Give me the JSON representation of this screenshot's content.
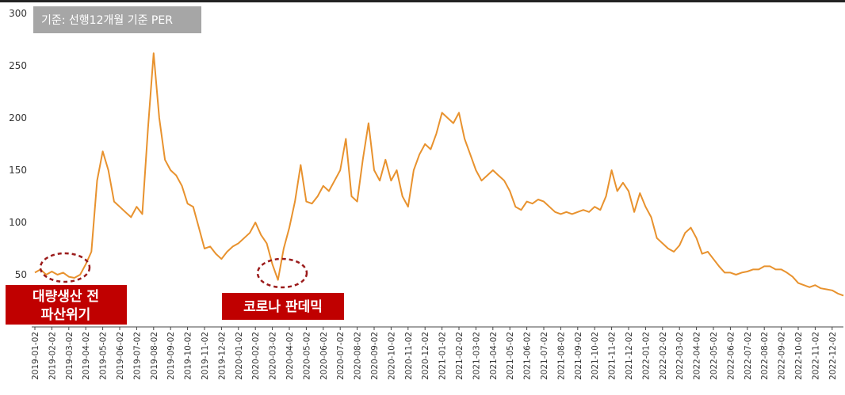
{
  "chart_data": {
    "type": "line",
    "note": "기준: 선행12개월 기준 PER",
    "annotations": [
      {
        "lines": [
          "대량생산 전",
          "파산위기"
        ]
      },
      {
        "lines": [
          "코로나 판데믹"
        ]
      }
    ],
    "categories": [
      "2019-01-02",
      null,
      null,
      "2019-02-02",
      null,
      null,
      "2019-03-02",
      null,
      null,
      "2019-04-02",
      null,
      null,
      "2019-05-02",
      null,
      null,
      "2019-06-02",
      null,
      null,
      "2019-07-02",
      null,
      null,
      "2019-08-02",
      null,
      null,
      "2019-09-02",
      null,
      null,
      "2019-10-02",
      null,
      null,
      "2019-11-02",
      null,
      null,
      "2019-12-02",
      null,
      null,
      "2020-01-02",
      null,
      null,
      "2020-02-02",
      null,
      null,
      "2020-03-02",
      null,
      null,
      "2020-04-02",
      null,
      null,
      "2020-05-02",
      null,
      null,
      "2020-06-02",
      null,
      null,
      "2020-07-02",
      null,
      null,
      "2020-08-02",
      null,
      null,
      "2020-09-02",
      null,
      null,
      "2020-10-02",
      null,
      null,
      "2020-11-02",
      null,
      null,
      "2020-12-02",
      null,
      null,
      "2021-01-02",
      null,
      null,
      "2021-02-02",
      null,
      null,
      "2021-03-02",
      null,
      null,
      "2021-04-02",
      null,
      null,
      "2021-05-02",
      null,
      null,
      "2021-06-02",
      null,
      null,
      "2021-07-02",
      null,
      null,
      "2021-08-02",
      null,
      null,
      "2021-09-02",
      null,
      null,
      "2021-10-02",
      null,
      null,
      "2021-11-02",
      null,
      null,
      "2021-12-02",
      null,
      null,
      "2022-01-02",
      null,
      null,
      "2022-02-02",
      null,
      null,
      "2022-03-02",
      null,
      null,
      "2022-04-02",
      null,
      null,
      "2022-05-02",
      null,
      null,
      "2022-06-02",
      null,
      null,
      "2022-07-02",
      null,
      null,
      "2022-08-02",
      null,
      null,
      "2022-09-02",
      null,
      null,
      "2022-10-02",
      null,
      null,
      "2022-11-02",
      null,
      null,
      "2022-12-02",
      null,
      null
    ],
    "values": [
      52,
      55,
      50,
      53,
      50,
      52,
      48,
      47,
      50,
      60,
      72,
      140,
      168,
      150,
      120,
      115,
      110,
      105,
      115,
      108,
      190,
      262,
      200,
      160,
      150,
      145,
      135,
      118,
      115,
      95,
      75,
      77,
      70,
      65,
      72,
      77,
      80,
      85,
      90,
      100,
      88,
      80,
      60,
      45,
      75,
      95,
      120,
      155,
      120,
      118,
      125,
      135,
      130,
      140,
      150,
      180,
      125,
      120,
      160,
      195,
      150,
      140,
      160,
      140,
      150,
      125,
      115,
      150,
      165,
      175,
      170,
      185,
      205,
      200,
      195,
      205,
      180,
      165,
      150,
      140,
      145,
      150,
      145,
      140,
      130,
      115,
      112,
      120,
      118,
      122,
      120,
      115,
      110,
      108,
      110,
      108,
      110,
      112,
      110,
      115,
      112,
      125,
      150,
      130,
      138,
      130,
      110,
      128,
      115,
      105,
      85,
      80,
      75,
      72,
      78,
      90,
      95,
      85,
      70,
      72,
      65,
      58,
      52,
      52,
      50,
      52,
      53,
      55,
      55,
      58,
      58,
      55,
      55,
      52,
      48,
      42,
      40,
      38,
      40,
      37,
      36,
      35,
      32,
      30
    ],
    "color": "#e8922e",
    "ylim": [
      0,
      300
    ],
    "yticks": [
      50,
      100,
      150,
      200,
      250,
      300
    ],
    "grid": false
  }
}
